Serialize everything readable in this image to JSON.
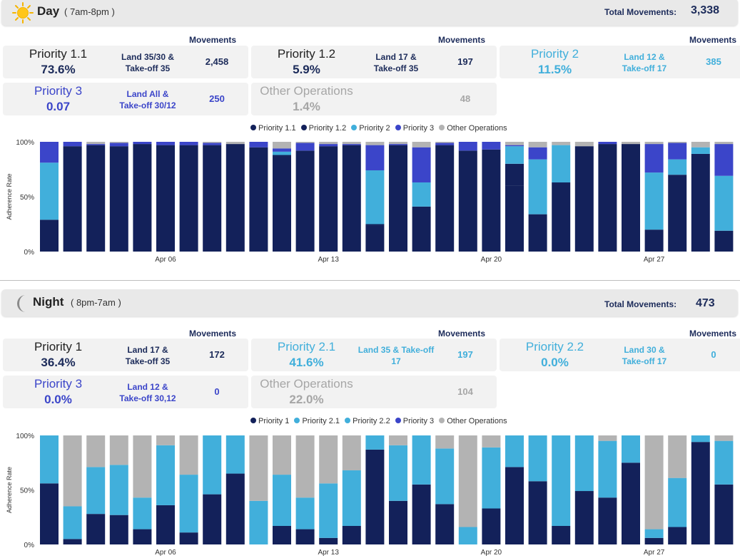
{
  "colors": {
    "p1": "#13215a",
    "p1b": "#13215a",
    "p2": "#41afdb",
    "p22": "#41afdb",
    "p3": "#3b45c9",
    "other": "#b3b3b3",
    "dark_text": "#1c2b5a",
    "light_text": "#41afdb",
    "grey_text": "#a6a6a6",
    "p3_text": "#3b45c9"
  },
  "day": {
    "icon": "sun-icon",
    "title": "Day",
    "subtitle": "( 7am-8pm )",
    "total_label": "Total Movements:",
    "total_value": "3,338",
    "movements_label": "Movements",
    "cards": [
      {
        "name": "Priority 1.1",
        "pct": "73.6%",
        "desc1": "Land 35/30 &",
        "desc2": "Take-off 35",
        "movements": "2,458",
        "tone": "dark"
      },
      {
        "name": "Priority 1.2",
        "pct": "5.9%",
        "desc1": "Land 17 &",
        "desc2": "Take-off 35",
        "movements": "197",
        "tone": "dark"
      },
      {
        "name": "Priority 2",
        "pct": "11.5%",
        "desc1": "Land 12 &",
        "desc2": "Take-off 17",
        "movements": "385",
        "tone": "light"
      },
      {
        "name": "Priority 3",
        "pct": "0.07",
        "desc1": "Land All &",
        "desc2": "Take-off 30/12",
        "movements": "250",
        "tone": "p3"
      },
      {
        "name": "Other Operations",
        "pct": "1.4%",
        "desc1": "",
        "desc2": "",
        "movements": "48",
        "tone": "grey"
      }
    ],
    "legend": [
      "Priority 1.1",
      "Priority 1.2",
      "Priority 2",
      "Priority 3",
      "Other Operations"
    ]
  },
  "night": {
    "icon": "moon-icon",
    "title": "Night",
    "subtitle": "( 8pm-7am )",
    "total_label": "Total Movements:",
    "total_value": "473",
    "movements_label": "Movements",
    "cards": [
      {
        "name": "Priority 1",
        "pct": "36.4%",
        "desc1": "Land 17 &",
        "desc2": "Take-off 35",
        "movements": "172",
        "tone": "dark"
      },
      {
        "name": "Priority 2.1",
        "pct": "41.6%",
        "desc1": "Land 35 & Take-off",
        "desc2": "17",
        "movements": "197",
        "tone": "light"
      },
      {
        "name": "Priority 2.2",
        "pct": "0.0%",
        "desc1": "Land 30 &",
        "desc2": "Take-off 17",
        "movements": "0",
        "tone": "light"
      },
      {
        "name": "Priority 3",
        "pct": "0.0%",
        "desc1": "Land 12 &",
        "desc2": "Take-off 30,12",
        "movements": "0",
        "tone": "p3"
      },
      {
        "name": "Other Operations",
        "pct": "22.0%",
        "desc1": "",
        "desc2": "",
        "movements": "104",
        "tone": "grey"
      }
    ],
    "legend": [
      "Priority 1",
      "Priority 2.1",
      "Priority 2.2",
      "Priority 3",
      "Other Operations"
    ]
  },
  "chart_data": [
    {
      "type": "bar",
      "stacked": true,
      "ylabel": "Adherence Rate",
      "y_ticks": [
        "0%",
        "50%",
        "100%"
      ],
      "ylim": [
        0,
        100
      ],
      "x_tick_labels": [
        {
          "index": 5,
          "label": "Apr 06"
        },
        {
          "index": 12,
          "label": "Apr 13"
        },
        {
          "index": 19,
          "label": "Apr 20"
        },
        {
          "index": 26,
          "label": "Apr 27"
        }
      ],
      "legend_position": "top-center",
      "bar_count": 30,
      "series": [
        {
          "name": "Priority 1.1",
          "color": "#13215a",
          "values": [
            29,
            96,
            97,
            96,
            98,
            97,
            97,
            97,
            98,
            95,
            87,
            92,
            96,
            97,
            24,
            97,
            41,
            97,
            92,
            93,
            60,
            34,
            62,
            96,
            98,
            98,
            20,
            70,
            89,
            19
          ]
        },
        {
          "name": "Priority 1.2",
          "color": "#13215a",
          "values": [
            0,
            0,
            0,
            0,
            0,
            0,
            0,
            0,
            0,
            0,
            1,
            0,
            0,
            0,
            1,
            0,
            0,
            0,
            0,
            0,
            20,
            0,
            1,
            0,
            0,
            0,
            0,
            0,
            0,
            0
          ]
        },
        {
          "name": "Priority 2",
          "color": "#41afdb",
          "values": [
            52,
            0,
            0,
            0,
            0,
            0,
            0,
            0,
            0,
            0,
            3,
            0,
            0,
            0,
            49,
            0,
            22,
            0,
            0,
            0,
            16,
            50,
            34,
            0,
            0,
            0,
            52,
            14,
            6,
            50
          ]
        },
        {
          "name": "Priority 3",
          "color": "#3b45c9",
          "values": [
            19,
            4,
            1,
            3,
            2,
            3,
            3,
            2,
            0,
            5,
            3,
            7,
            2,
            1,
            23,
            1,
            32,
            2,
            8,
            7,
            1,
            11,
            0,
            0,
            2,
            0,
            26,
            15,
            0,
            29
          ]
        },
        {
          "name": "Other Operations",
          "color": "#b3b3b3",
          "values": [
            0,
            0,
            2,
            1,
            0,
            0,
            0,
            1,
            2,
            0,
            6,
            1,
            2,
            2,
            3,
            2,
            5,
            1,
            0,
            0,
            3,
            5,
            3,
            4,
            0,
            2,
            2,
            1,
            5,
            2
          ]
        }
      ]
    },
    {
      "type": "bar",
      "stacked": true,
      "ylabel": "Adherence Rate",
      "y_ticks": [
        "0%",
        "50%",
        "100%"
      ],
      "ylim": [
        0,
        100
      ],
      "x_tick_labels": [
        {
          "index": 5,
          "label": "Apr 06"
        },
        {
          "index": 12,
          "label": "Apr 13"
        },
        {
          "index": 19,
          "label": "Apr 20"
        },
        {
          "index": 26,
          "label": "Apr 27"
        }
      ],
      "legend_position": "top-center",
      "bar_count": 30,
      "series": [
        {
          "name": "Priority 1",
          "color": "#13215a",
          "values": [
            56,
            5,
            28,
            27,
            14,
            36,
            11,
            46,
            65,
            0,
            17,
            14,
            6,
            17,
            87,
            40,
            55,
            37,
            0,
            33,
            71,
            58,
            17,
            49,
            43,
            75,
            6,
            16,
            94,
            55
          ]
        },
        {
          "name": "Priority 2.1",
          "color": "#41afdb",
          "values": [
            44,
            30,
            43,
            46,
            29,
            55,
            53,
            54,
            35,
            40,
            47,
            29,
            50,
            51,
            13,
            51,
            45,
            51,
            16,
            56,
            29,
            42,
            83,
            51,
            52,
            25,
            8,
            45,
            6,
            40
          ]
        },
        {
          "name": "Priority 2.2",
          "color": "#41afdb",
          "values": [
            0,
            0,
            0,
            0,
            0,
            0,
            0,
            0,
            0,
            0,
            0,
            0,
            0,
            0,
            0,
            0,
            0,
            0,
            0,
            0,
            0,
            0,
            0,
            0,
            0,
            0,
            0,
            0,
            0,
            0
          ]
        },
        {
          "name": "Priority 3",
          "color": "#3b45c9",
          "values": [
            0,
            0,
            0,
            0,
            0,
            0,
            0,
            0,
            0,
            0,
            0,
            0,
            0,
            0,
            0,
            0,
            0,
            0,
            0,
            0,
            0,
            0,
            0,
            0,
            0,
            0,
            0,
            0,
            0,
            0
          ]
        },
        {
          "name": "Other Operations",
          "color": "#b3b3b3",
          "values": [
            0,
            65,
            29,
            27,
            57,
            9,
            36,
            0,
            0,
            60,
            36,
            57,
            44,
            32,
            0,
            9,
            0,
            12,
            84,
            11,
            0,
            0,
            0,
            0,
            5,
            0,
            86,
            39,
            0,
            5
          ]
        }
      ]
    }
  ]
}
